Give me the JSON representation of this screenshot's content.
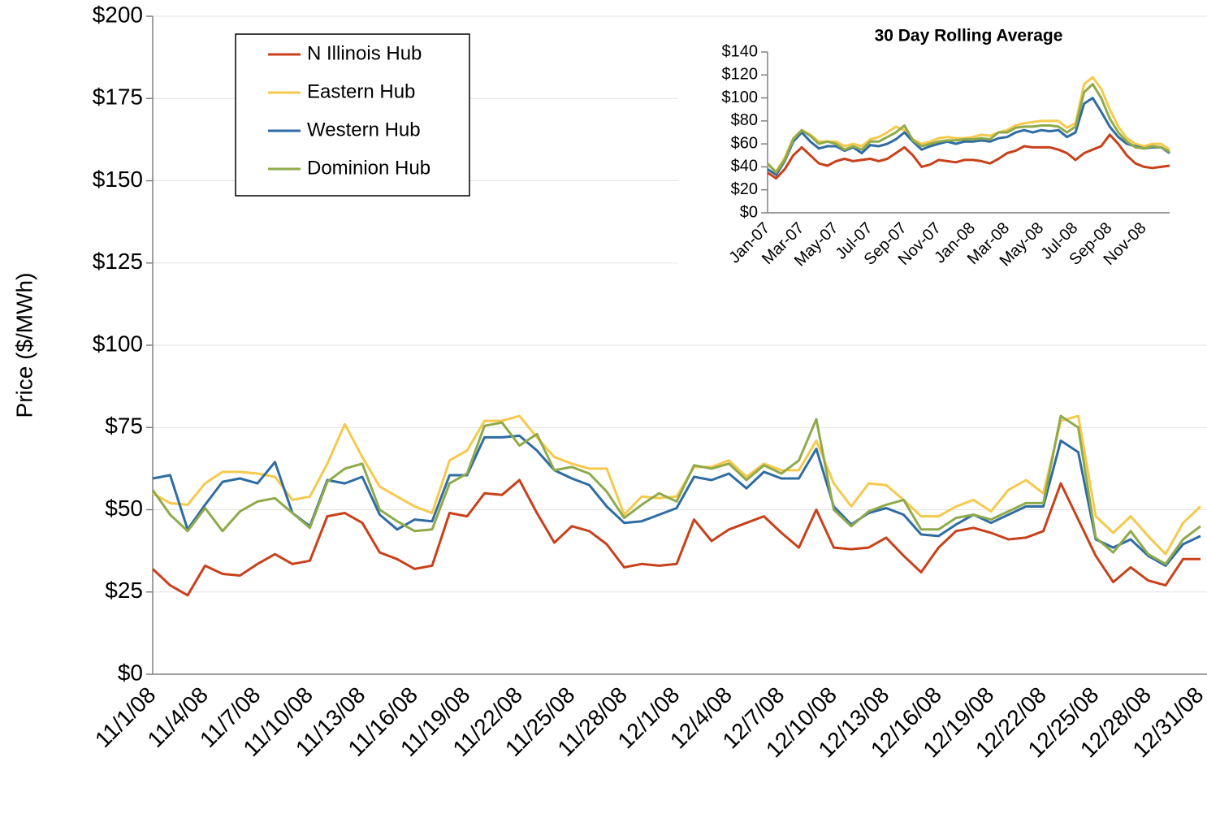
{
  "chart_data": [
    {
      "type": "line",
      "ylabel": "Price ($/MWh)",
      "grid": true,
      "legend": "upper left",
      "categories": [
        "11/1/08",
        null,
        null,
        "11/4/08",
        null,
        null,
        "11/7/08",
        null,
        null,
        "11/10/08",
        null,
        null,
        "11/13/08",
        null,
        null,
        "11/16/08",
        null,
        null,
        "11/19/08",
        null,
        null,
        "11/22/08",
        null,
        null,
        "11/25/08",
        null,
        null,
        "11/28/08",
        null,
        null,
        "12/1/08",
        null,
        null,
        "12/4/08",
        null,
        null,
        "12/7/08",
        null,
        null,
        "12/10/08",
        null,
        null,
        "12/13/08",
        null,
        null,
        "12/16/08",
        null,
        null,
        "12/19/08",
        null,
        null,
        "12/22/08",
        null,
        null,
        "12/25/08",
        null,
        null,
        "12/28/08",
        null,
        null,
        "12/31/08"
      ],
      "ylim": [
        0,
        200
      ],
      "yticks": [
        {
          "value": 0,
          "label": "$0"
        },
        {
          "value": 25,
          "label": "$25"
        },
        {
          "value": 50,
          "label": "$50"
        },
        {
          "value": 75,
          "label": "$75"
        },
        {
          "value": 100,
          "label": "$100"
        },
        {
          "value": 125,
          "label": "$125"
        },
        {
          "value": 150,
          "label": "$150"
        },
        {
          "value": 175,
          "label": "$175"
        },
        {
          "value": 200,
          "label": "$200"
        }
      ],
      "series": [
        {
          "name": "N Illinois Hub",
          "color": "#c8411b",
          "values": [
            32,
            27,
            24,
            33,
            30.5,
            30,
            33.5,
            36.5,
            33.5,
            34.5,
            48,
            49,
            46,
            37,
            35,
            32,
            33,
            49,
            48,
            55,
            54.5,
            59,
            49,
            40,
            45,
            43.5,
            39.5,
            32.5,
            33.5,
            33,
            33.5,
            47,
            40.5,
            44,
            46,
            48,
            43,
            38.5,
            50,
            38.5,
            38,
            38.5,
            41.5,
            36,
            31,
            38.5,
            43.5,
            44.5,
            43,
            41,
            41.5,
            43.5,
            58,
            47,
            36,
            28,
            32.5,
            28.5,
            27,
            35,
            35
          ]
        },
        {
          "name": "Eastern Hub",
          "color": "#f5c94c",
          "values": [
            55,
            52,
            51.5,
            58,
            61.5,
            61.5,
            61,
            60,
            53,
            54,
            64,
            76,
            66,
            57,
            54,
            51,
            49,
            65,
            68,
            77,
            77,
            78.5,
            72,
            66,
            64,
            62.5,
            62.5,
            48.5,
            54,
            53.5,
            54,
            63,
            63,
            65,
            60,
            64,
            62,
            62,
            71,
            58,
            51,
            58,
            57.5,
            53,
            48,
            48,
            51,
            53,
            49.5,
            56,
            59,
            55,
            77,
            78.5,
            48,
            43,
            48,
            42,
            36.5,
            46,
            51
          ]
        },
        {
          "name": "Western Hub",
          "color": "#2f6ca3",
          "values": [
            59.5,
            60.5,
            44,
            51.5,
            58.5,
            59.5,
            58,
            64.5,
            49,
            45,
            59,
            58,
            60,
            48.5,
            44,
            47,
            46.5,
            60.5,
            60.5,
            72,
            72,
            72.5,
            68,
            62,
            59.5,
            57.5,
            51,
            46,
            46.5,
            48.5,
            50.5,
            60,
            59,
            61,
            56.5,
            61.5,
            59.5,
            59.5,
            68.5,
            51,
            45.5,
            49,
            50.5,
            48.5,
            42.5,
            42,
            45.5,
            48.5,
            46,
            48.5,
            51,
            51,
            71,
            67.5,
            41,
            38.5,
            41,
            36,
            33,
            39.5,
            42
          ]
        },
        {
          "name": "Dominion Hub",
          "color": "#8faa4a",
          "values": [
            56,
            48.5,
            43.5,
            50.5,
            43.5,
            49.5,
            52.5,
            53.5,
            49,
            44.5,
            58.5,
            62.5,
            64,
            50,
            46.5,
            43.5,
            44,
            58,
            61,
            75.5,
            76.5,
            69.5,
            73,
            62,
            63,
            61,
            55.5,
            47.5,
            51.5,
            55,
            52.5,
            63.5,
            62.5,
            64,
            59,
            63.5,
            61,
            65,
            77.5,
            50,
            45,
            49.5,
            51.5,
            53,
            44,
            44,
            47.5,
            48.5,
            47,
            49.5,
            52,
            52,
            78.5,
            75,
            41.5,
            37,
            43.5,
            36.5,
            33.5,
            41,
            45
          ]
        }
      ]
    },
    {
      "type": "line",
      "title": "30 Day Rolling Average",
      "grid": false,
      "categories": [
        "Jan-07",
        null,
        null,
        null,
        "Mar-07",
        null,
        null,
        null,
        "May-07",
        null,
        null,
        null,
        "Jul-07",
        null,
        null,
        null,
        "Sep-07",
        null,
        null,
        null,
        "Nov-07",
        null,
        null,
        null,
        "Jan-08",
        null,
        null,
        null,
        "Mar-08",
        null,
        null,
        null,
        "May-08",
        null,
        null,
        null,
        "Jul-08",
        null,
        null,
        null,
        "Sep-08",
        null,
        null,
        null,
        "Nov-08",
        null,
        null,
        null
      ],
      "ylim": [
        0,
        140
      ],
      "yticks": [
        {
          "value": 0,
          "label": "$0"
        },
        {
          "value": 20,
          "label": "$20"
        },
        {
          "value": 40,
          "label": "$40"
        },
        {
          "value": 60,
          "label": "$60"
        },
        {
          "value": 80,
          "label": "$80"
        },
        {
          "value": 100,
          "label": "$100"
        },
        {
          "value": 120,
          "label": "$120"
        },
        {
          "value": 140,
          "label": "$140"
        }
      ],
      "series": [
        {
          "color": "#c8411b",
          "values": [
            35,
            30,
            38,
            50,
            57,
            50,
            43,
            41,
            45,
            47,
            45,
            46,
            47,
            45,
            47,
            52,
            57,
            50,
            40,
            42,
            46,
            45,
            44,
            46,
            46,
            45,
            43,
            47,
            52,
            54,
            58,
            57,
            57,
            57,
            55,
            52,
            46,
            52,
            55,
            58,
            68,
            60,
            50,
            43,
            40,
            39,
            40,
            41
          ]
        },
        {
          "color": "#f5c94c",
          "values": [
            42,
            36,
            48,
            65,
            72,
            68,
            62,
            62,
            62,
            58,
            60,
            58,
            64,
            66,
            70,
            75,
            72,
            64,
            60,
            62,
            65,
            66,
            65,
            65,
            66,
            68,
            67,
            70,
            72,
            76,
            78,
            79,
            80,
            80,
            80,
            74,
            78,
            112,
            118,
            108,
            90,
            75,
            65,
            60,
            58,
            60,
            60,
            55
          ]
        },
        {
          "color": "#2f6ca3",
          "values": [
            38,
            33,
            45,
            62,
            70,
            62,
            56,
            58,
            58,
            54,
            57,
            52,
            59,
            58,
            60,
            64,
            70,
            62,
            55,
            58,
            60,
            62,
            60,
            62,
            62,
            63,
            62,
            65,
            66,
            70,
            72,
            70,
            72,
            71,
            72,
            66,
            70,
            95,
            100,
            88,
            75,
            66,
            60,
            58,
            56,
            57,
            57,
            52
          ]
        },
        {
          "color": "#8faa4a",
          "values": [
            43,
            35,
            46,
            64,
            72,
            67,
            60,
            62,
            60,
            55,
            58,
            55,
            62,
            62,
            66,
            70,
            76,
            63,
            58,
            60,
            62,
            63,
            63,
            64,
            64,
            65,
            64,
            70,
            70,
            74,
            75,
            75,
            76,
            76,
            75,
            70,
            75,
            105,
            112,
            100,
            82,
            70,
            62,
            57,
            56,
            58,
            57,
            53
          ]
        }
      ]
    }
  ]
}
